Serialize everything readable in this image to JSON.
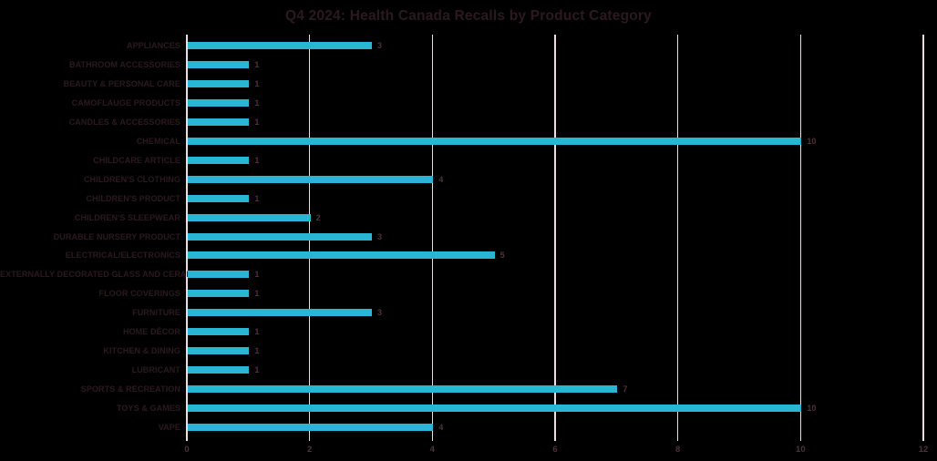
{
  "chart_data": {
    "type": "bar",
    "orientation": "horizontal",
    "title": "Q4 2024: Health Canada Recalls by Product Category",
    "categories": [
      "APPLIANCES",
      "BATHROOM ACCESSORIES",
      "BEAUTY & PERSONAL CARE",
      "CAMOFLAUGE PRODUCTS",
      "CANDLES & ACCESSORIES",
      "CHEMICAL",
      "CHILDCARE ARTICLE",
      "CHILDREN'S CLOTHING",
      "CHILDREN'S PRODUCT",
      "CHILDREN'S SLEEPWEAR",
      "DURABLE NURSERY PRODUCT",
      "ELECTRICAL/ELECTRONICS",
      "EXTERNALLY DECORATED GLASS AND CERAMICS",
      "FLOOR COVERINGS",
      "FURNITURE",
      "HOME DÉCOR",
      "KITCHEN & DINING",
      "LUBRICANT",
      "SPORTS & RECREATION",
      "TOYS & GAMES",
      "VAPE"
    ],
    "values": [
      3,
      1,
      1,
      1,
      1,
      10,
      1,
      4,
      1,
      2,
      3,
      5,
      1,
      1,
      3,
      1,
      1,
      1,
      7,
      10,
      4
    ],
    "xlabel": "",
    "ylabel": "",
    "xlim": [
      0,
      12
    ],
    "xticks": [
      0,
      2,
      4,
      6,
      8,
      10,
      12
    ],
    "grid": true,
    "legend": false,
    "value_labels_shown": true
  },
  "colors": {
    "background": "#000000",
    "bar": "#29b6d5",
    "gridline": "#e9dee4",
    "axis_line": "#e9dee4",
    "title_text": "#2b191f",
    "category_text": "#2b191f",
    "value_text": "#4e323b",
    "tick_text": "#4e323b"
  }
}
